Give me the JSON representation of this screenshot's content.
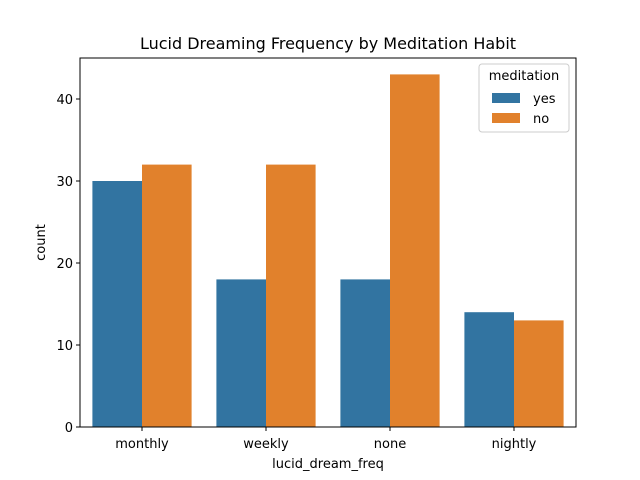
{
  "chart_data": {
    "type": "bar",
    "title": "Lucid Dreaming Frequency by Meditation Habit",
    "xlabel": "lucid_dream_freq",
    "ylabel": "count",
    "categories": [
      "monthly",
      "weekly",
      "none",
      "nightly"
    ],
    "series": [
      {
        "name": "yes",
        "values": [
          30,
          18,
          18,
          14
        ],
        "color": "#3274a1"
      },
      {
        "name": "no",
        "values": [
          32,
          32,
          43,
          13
        ],
        "color": "#e1812c"
      }
    ],
    "ylim": [
      0,
      45
    ],
    "yticks": [
      0,
      10,
      20,
      30,
      40
    ],
    "grid": false,
    "legend": {
      "title": "meditation",
      "placement": "top-right"
    }
  }
}
